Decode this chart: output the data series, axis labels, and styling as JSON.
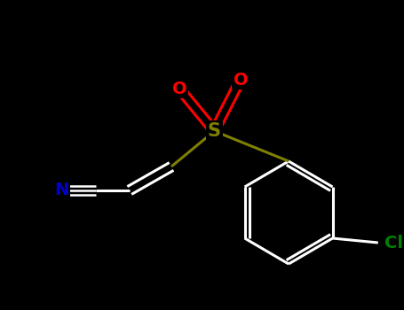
{
  "bg_color": "#000000",
  "bond_color": "#ffffff",
  "S_color": "#808000",
  "O_color": "#ff0000",
  "N_color": "#0000cd",
  "Cl_color": "#008000",
  "S_label": "S",
  "O_label": "O",
  "N_label": "N",
  "Cl_label": "Cl",
  "bond_lw": 2.2,
  "font_size": 14
}
